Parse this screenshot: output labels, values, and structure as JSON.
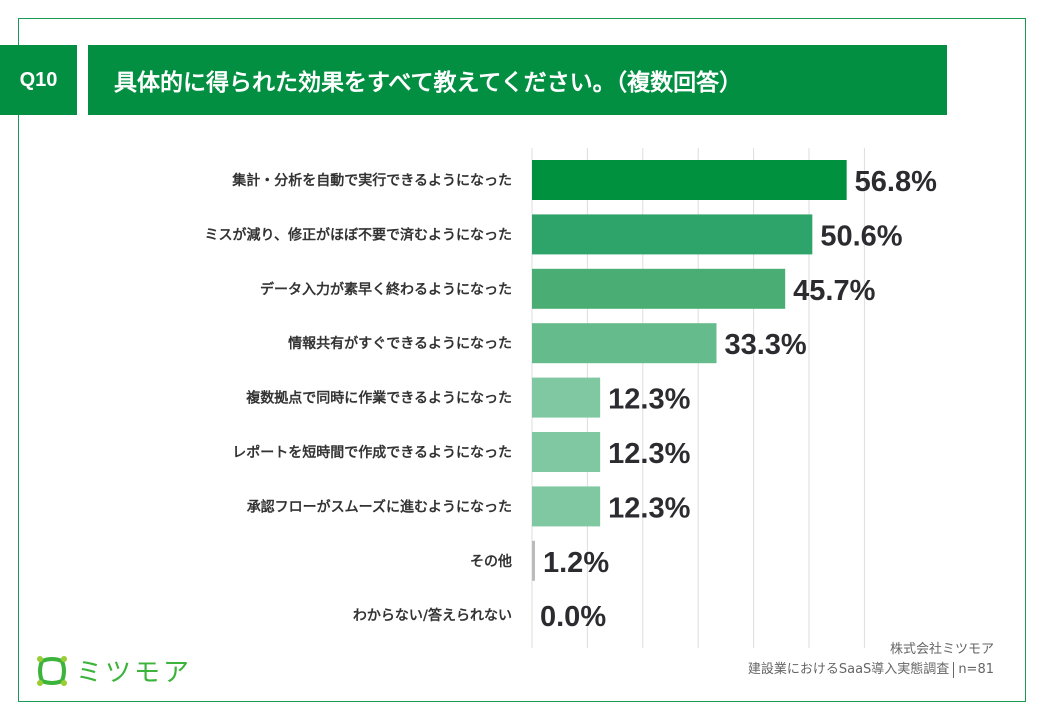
{
  "header": {
    "question_no": "Q10",
    "title": "具体的に得られた効果をすべて教えてください。（複数回答）"
  },
  "chart_data": {
    "type": "bar",
    "orientation": "horizontal",
    "categories": [
      "集計・分析を自動で実行できるようになった",
      "ミスが減り、修正がほぼ不要で済むようになった",
      "データ入力が素早く終わるようになった",
      "情報共有がすぐできるようになった",
      "複数拠点で同時に作業できるようになった",
      "レポートを短時間で作成できるようになった",
      "承認フローがスムーズに進むようになった",
      "その他",
      "わからない/答えられない"
    ],
    "values": [
      56.8,
      50.6,
      45.7,
      33.3,
      12.3,
      12.3,
      12.3,
      1.2,
      0.0
    ],
    "data_labels": [
      "56.8%",
      "50.6%",
      "45.7%",
      "33.3%",
      "12.3%",
      "12.3%",
      "12.3%",
      "1.2%",
      "0.0%"
    ],
    "xlim": [
      0,
      60
    ],
    "grid": "vertical",
    "colors": [
      "#00913f",
      "#2fa46a",
      "#4aae74",
      "#66bb8c",
      "#80c8a2",
      "#80c8a2",
      "#80c8a2",
      "#bbbbbb",
      "#bbbbbb"
    ]
  },
  "footer": {
    "brand": "ミツモア",
    "company": "株式会社ミツモア",
    "survey": "建設業におけるSaaS導入実態調査",
    "sample": "n=81"
  }
}
